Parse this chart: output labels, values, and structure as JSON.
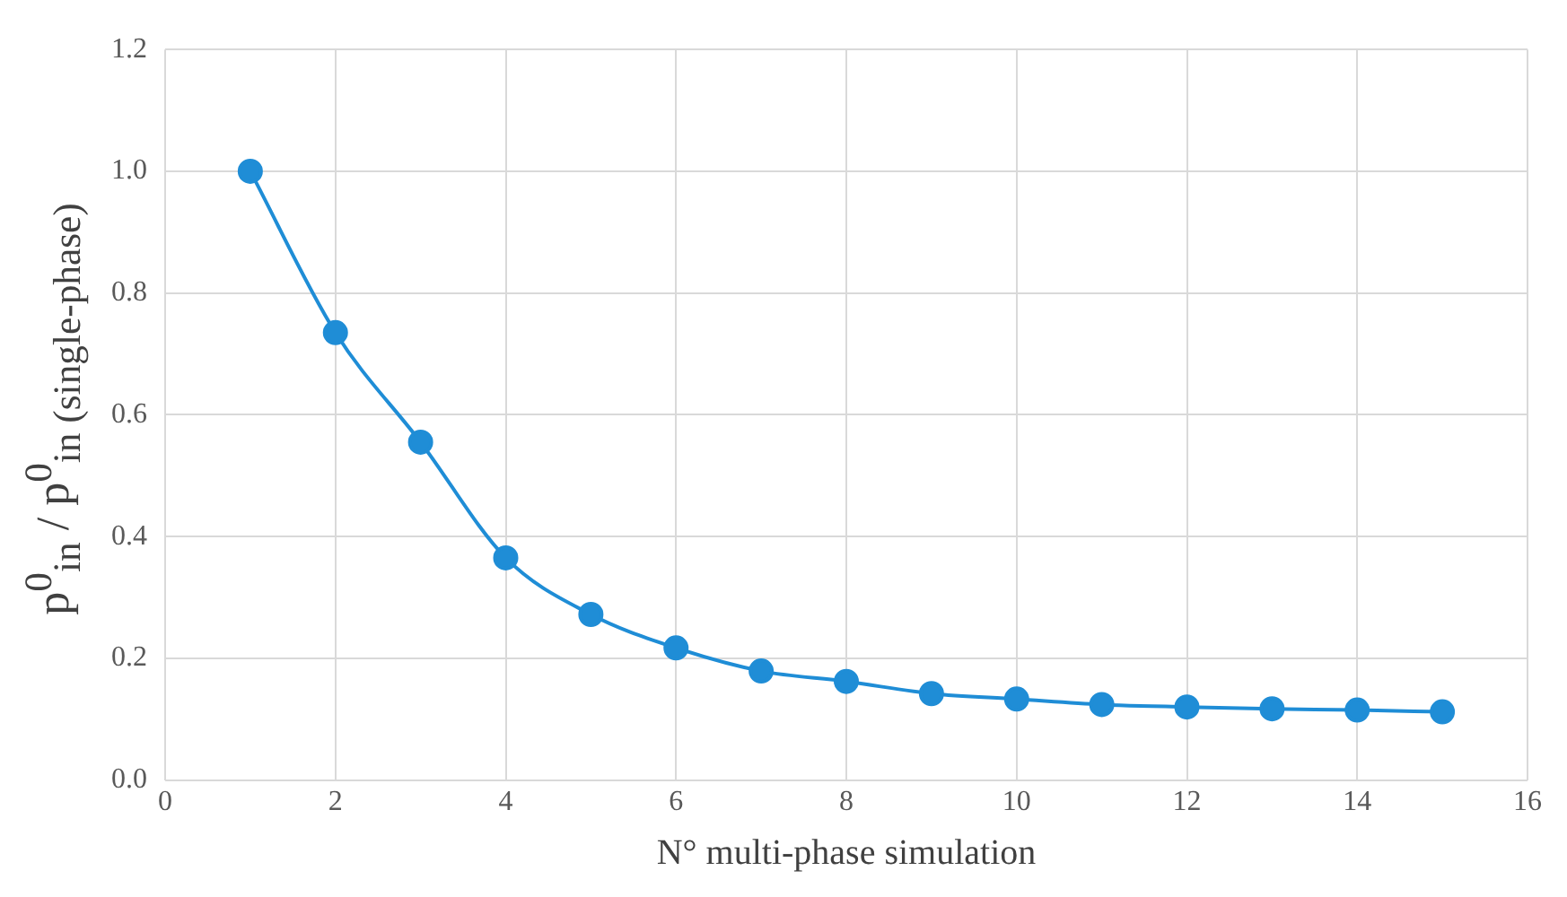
{
  "chart_data": {
    "type": "line",
    "xlabel": "N° multi-phase simulation",
    "ylabel": "p$^{0}$$_{in}$ / p$^{0}$$_{in (single-phase)}$",
    "x": [
      1,
      2,
      3,
      4,
      5,
      6,
      7,
      8,
      9,
      10,
      11,
      12,
      13,
      14,
      15
    ],
    "series": [
      {
        "color": "#1f8dd6",
        "values": [
          1.0,
          0.735,
          0.555,
          0.365,
          0.272,
          0.217,
          0.179,
          0.162,
          0.142,
          0.133,
          0.124,
          0.12,
          0.117,
          0.115,
          0.112
        ]
      }
    ],
    "xlim": [
      0,
      16
    ],
    "xticks": [
      0,
      2,
      4,
      6,
      8,
      10,
      12,
      14,
      16
    ],
    "ylim": [
      0,
      1.2
    ],
    "yticks": [
      {
        "value": 0,
        "label": "0.0"
      },
      {
        "value": 0.2,
        "label": "0.2"
      },
      {
        "value": 0.4,
        "label": "0.4"
      },
      {
        "value": 0.6,
        "label": "0.6"
      },
      {
        "value": 0.8,
        "label": "0.8"
      },
      {
        "value": 1,
        "label": "1.0"
      },
      {
        "value": 1.2,
        "label": "1.2"
      }
    ],
    "grid": true,
    "legend": false,
    "marker": "circle",
    "line_style": "solid"
  }
}
